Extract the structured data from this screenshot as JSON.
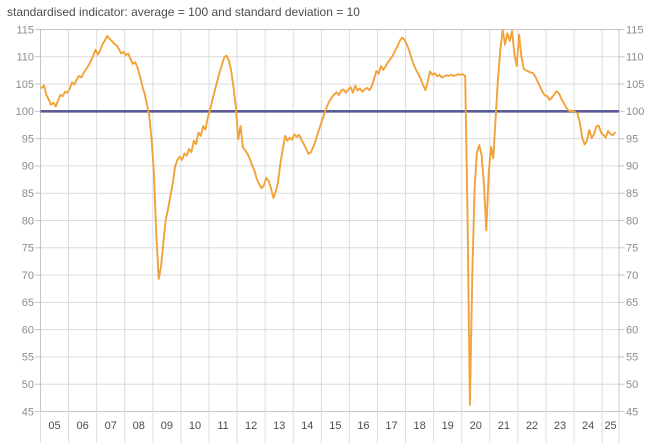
{
  "title": "standardised indicator: average = 100 and standard deviation = 10",
  "colors": {
    "series_line": "#f1a33a",
    "average_line": "#5b5b99",
    "gridline": "#dcdcdc",
    "plot_border": "#c6c6c6",
    "title_text": "#4d4d4d",
    "x_tick_text": "#4d4d4d",
    "y_tick_text": "#8c8c8c",
    "background": "#ffffff"
  },
  "chart_data": {
    "type": "line",
    "title": "standardised indicator: average = 100 and standard deviation = 10",
    "frequency": "monthly",
    "x_start": "2005-01",
    "x_end": "2025-06",
    "x_tick_labels": [
      "05",
      "06",
      "07",
      "08",
      "09",
      "10",
      "11",
      "12",
      "13",
      "14",
      "15",
      "16",
      "17",
      "18",
      "19",
      "20",
      "21",
      "22",
      "23",
      "24",
      "25"
    ],
    "y_ticks": [
      45,
      50,
      55,
      60,
      65,
      70,
      75,
      80,
      85,
      90,
      95,
      100,
      105,
      110,
      115
    ],
    "ylim": [
      45,
      115
    ],
    "grid": true,
    "legend_position": "none",
    "average_line": {
      "value": 100,
      "label": "average = 100",
      "color": "#5b5b99"
    },
    "series": [
      {
        "name": "standardised indicator",
        "color": "#f1a33a",
        "values": [
          104.3,
          104.8,
          103.0,
          102.2,
          101.2,
          101.6,
          100.9,
          102.0,
          103.0,
          102.8,
          103.6,
          103.4,
          104.2,
          105.3,
          104.9,
          105.9,
          106.5,
          106.2,
          107.1,
          107.7,
          108.4,
          109.2,
          110.2,
          111.3,
          110.4,
          111.2,
          112.3,
          113.0,
          113.8,
          113.3,
          112.9,
          112.4,
          112.1,
          111.4,
          110.6,
          110.9,
          110.3,
          110.6,
          109.5,
          108.7,
          109.0,
          107.9,
          106.4,
          104.7,
          103.2,
          101.3,
          99.2,
          94.6,
          88.5,
          77.5,
          69.3,
          71.5,
          76.0,
          80.1,
          82.0,
          84.5,
          86.8,
          89.9,
          91.1,
          91.7,
          91.1,
          92.3,
          91.9,
          93.1,
          92.5,
          94.6,
          94.0,
          96.1,
          95.5,
          97.3,
          96.7,
          98.9,
          100.4,
          102.2,
          103.8,
          105.5,
          107.1,
          108.5,
          109.9,
          110.2,
          109.3,
          107.4,
          104.3,
          100.7,
          94.9,
          97.3,
          93.4,
          92.8,
          92.2,
          91.2,
          90.1,
          89.0,
          87.5,
          86.6,
          85.9,
          86.5,
          87.8,
          87.2,
          85.9,
          84.1,
          85.3,
          87.0,
          90.5,
          93.0,
          95.5,
          94.6,
          95.2,
          94.8,
          95.8,
          95.3,
          95.7,
          94.8,
          94.0,
          93.2,
          92.2,
          92.5,
          93.4,
          94.6,
          96.0,
          97.3,
          98.5,
          99.8,
          101.0,
          101.9,
          102.6,
          103.1,
          103.5,
          103.0,
          103.8,
          104.0,
          103.4,
          104.0,
          104.4,
          103.4,
          104.7,
          103.8,
          104.2,
          103.6,
          104.0,
          104.3,
          103.9,
          104.5,
          105.9,
          107.4,
          106.9,
          108.3,
          107.6,
          108.3,
          109.0,
          109.6,
          110.2,
          111.1,
          111.9,
          112.9,
          113.5,
          113.2,
          112.3,
          111.2,
          109.8,
          108.5,
          107.6,
          106.8,
          105.9,
          104.8,
          103.9,
          105.5,
          107.3,
          106.7,
          107.0,
          106.4,
          106.7,
          106.2,
          106.4,
          106.6,
          106.5,
          106.7,
          106.5,
          106.6,
          106.8,
          106.7,
          106.8,
          106.5,
          80.0,
          46.2,
          70.0,
          86.0,
          92.5,
          93.8,
          92.0,
          86.5,
          78.2,
          88.5,
          93.5,
          91.4,
          99.0,
          106.0,
          111.5,
          114.9,
          112.2,
          114.3,
          112.9,
          114.7,
          110.5,
          108.3,
          114.0,
          110.0,
          107.8,
          107.5,
          107.3,
          107.1,
          107.0,
          106.3,
          105.4,
          104.5,
          103.6,
          102.9,
          102.8,
          102.1,
          102.5,
          103.1,
          103.7,
          103.3,
          102.4,
          101.6,
          100.8,
          100.2,
          100.0,
          100.1,
          99.9,
          99.6,
          97.8,
          95.1,
          93.9,
          94.6,
          96.6,
          95.1,
          95.8,
          97.2,
          97.4,
          96.1,
          95.7,
          95.2,
          96.4,
          95.9,
          95.6,
          96.1
        ]
      }
    ]
  }
}
